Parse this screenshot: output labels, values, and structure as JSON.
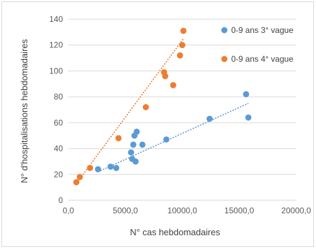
{
  "chart_data": {
    "type": "scatter",
    "title": "",
    "xlabel": "N° cas hebdomadaires",
    "ylabel": "N° d'hospitalisations hebdomadaires",
    "xlim": [
      0,
      20000
    ],
    "ylim": [
      0,
      140
    ],
    "x_ticks": [
      0,
      5000,
      10000,
      15000,
      20000
    ],
    "x_tick_labels": [
      "0,0",
      "5000,0",
      "10000,0",
      "15000,0",
      "20000,0"
    ],
    "y_ticks": [
      0,
      20,
      40,
      60,
      80,
      100,
      120,
      140
    ],
    "y_tick_labels": [
      "0",
      "20",
      "40",
      "60",
      "80",
      "100",
      "120",
      "140"
    ],
    "grid": "horizontal",
    "legend": "top-right",
    "series": [
      {
        "name": "0-9 ans 3° vague",
        "color": "#5b9bd5",
        "trendline": "linear",
        "points": [
          {
            "x": 2600,
            "y": 24
          },
          {
            "x": 3700,
            "y": 26
          },
          {
            "x": 4200,
            "y": 25
          },
          {
            "x": 5600,
            "y": 32
          },
          {
            "x": 5500,
            "y": 37
          },
          {
            "x": 5700,
            "y": 43
          },
          {
            "x": 5900,
            "y": 30
          },
          {
            "x": 5800,
            "y": 50
          },
          {
            "x": 6000,
            "y": 53
          },
          {
            "x": 6500,
            "y": 43
          },
          {
            "x": 8600,
            "y": 47
          },
          {
            "x": 12400,
            "y": 63
          },
          {
            "x": 15600,
            "y": 82
          },
          {
            "x": 15800,
            "y": 64
          }
        ],
        "trend": [
          [
            2600,
            22
          ],
          [
            15800,
            75
          ]
        ]
      },
      {
        "name": "0-9 ans 4° vague",
        "color": "#ed7d31",
        "trendline": "linear",
        "points": [
          {
            "x": 700,
            "y": 14
          },
          {
            "x": 1000,
            "y": 18
          },
          {
            "x": 1900,
            "y": 25
          },
          {
            "x": 4400,
            "y": 48
          },
          {
            "x": 6800,
            "y": 72
          },
          {
            "x": 8400,
            "y": 99
          },
          {
            "x": 8500,
            "y": 96
          },
          {
            "x": 9200,
            "y": 89
          },
          {
            "x": 9800,
            "y": 112
          },
          {
            "x": 10000,
            "y": 120
          },
          {
            "x": 10100,
            "y": 131
          }
        ],
        "trend": [
          [
            700,
            13
          ],
          [
            10100,
            125
          ]
        ]
      }
    ]
  }
}
